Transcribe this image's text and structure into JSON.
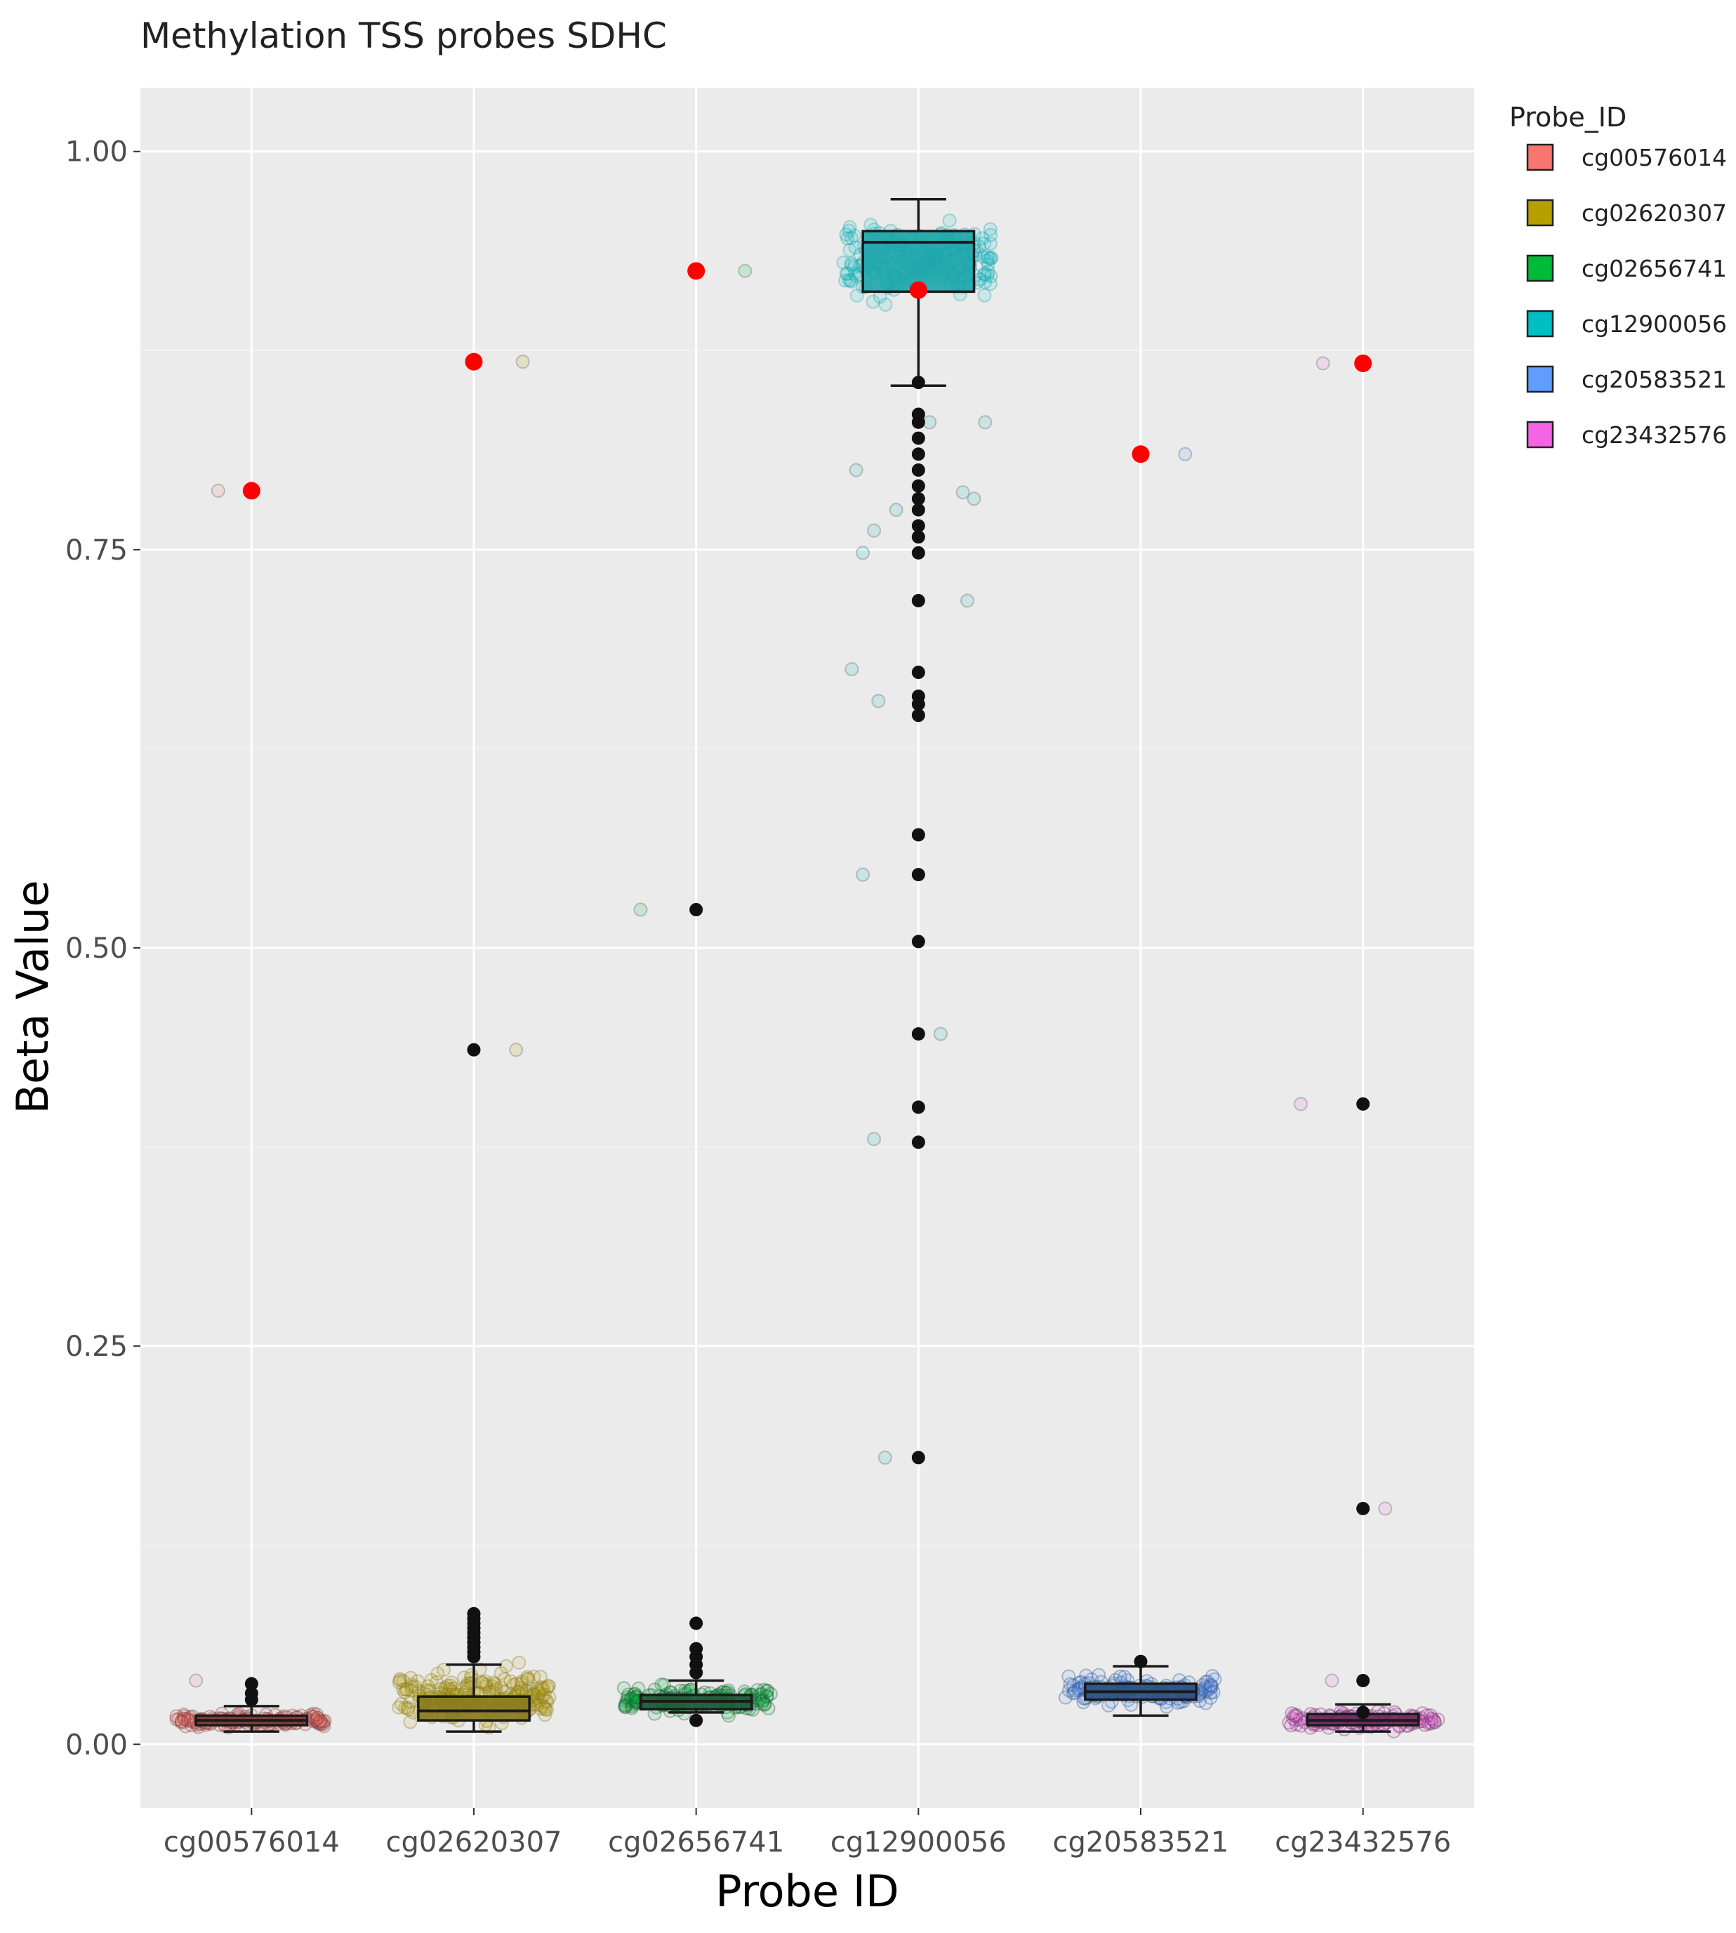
{
  "chart_data": {
    "type": "box",
    "title": "Methylation TSS probes SDHC",
    "xlabel": "Probe ID",
    "ylabel": "Beta Value",
    "ylim": [
      -0.04,
      1.04
    ],
    "yticks": [
      0.0,
      0.25,
      0.5,
      0.75,
      1.0
    ],
    "ytick_labels": [
      "0.00",
      "0.25",
      "0.50",
      "0.75",
      "1.00"
    ],
    "grid": true,
    "legend": {
      "title": "Probe_ID",
      "position": "right",
      "entries": [
        "cg00576014",
        "cg02620307",
        "cg02656741",
        "cg12900056",
        "cg20583521",
        "cg23432576"
      ]
    },
    "highlight_color": "#ff0000",
    "series": [
      {
        "name": "cg00576014",
        "color": "#f8766d",
        "box_color": "#7a3a3a",
        "box": {
          "whisker_low": 0.008,
          "q1": 0.012,
          "median": 0.015,
          "q3": 0.018,
          "whisker_high": 0.024
        },
        "outliers": [
          0.028,
          0.032,
          0.038
        ],
        "highlight": 0.787,
        "jitter_spread": 0.008,
        "jitter_center": 0.015,
        "jitter_count": 140,
        "faint_points": [
          [
            -0.15,
            0.787
          ],
          [
            -0.25,
            0.04
          ]
        ]
      },
      {
        "name": "cg02620307",
        "color": "#b79f00",
        "box_color": "#8a7a1e",
        "box": {
          "whisker_low": 0.008,
          "q1": 0.015,
          "median": 0.021,
          "q3": 0.03,
          "whisker_high": 0.05
        },
        "outliers": [
          0.055,
          0.058,
          0.061,
          0.064,
          0.067,
          0.07,
          0.073,
          0.076,
          0.079,
          0.082,
          0.436
        ],
        "highlight": 0.868,
        "jitter_spread": 0.03,
        "jitter_center": 0.03,
        "jitter_count": 220,
        "faint_points": [
          [
            0.22,
            0.868
          ],
          [
            0.19,
            0.436
          ]
        ]
      },
      {
        "name": "cg02656741",
        "color": "#00ba38",
        "box_color": "#1f5a3a",
        "box": {
          "whisker_low": 0.02,
          "q1": 0.022,
          "median": 0.027,
          "q3": 0.031,
          "whisker_high": 0.04
        },
        "outliers": [
          0.015,
          0.045,
          0.05,
          0.055,
          0.06,
          0.076,
          0.524
        ],
        "highlight": 0.925,
        "jitter_spread": 0.015,
        "jitter_center": 0.028,
        "jitter_count": 170,
        "faint_points": [
          [
            0.22,
            0.925
          ],
          [
            -0.25,
            0.524
          ]
        ]
      },
      {
        "name": "cg12900056",
        "color": "#00bfc4",
        "box_color": "#1ea6ab",
        "box": {
          "whisker_low": 0.853,
          "q1": 0.912,
          "median": 0.943,
          "q3": 0.95,
          "whisker_high": 0.97
        },
        "outliers": [
          0.18,
          0.378,
          0.4,
          0.446,
          0.504,
          0.546,
          0.571,
          0.646,
          0.653,
          0.658,
          0.673,
          0.718,
          0.748,
          0.758,
          0.765,
          0.775,
          0.782,
          0.79,
          0.8,
          0.81,
          0.82,
          0.83,
          0.835,
          0.855
        ],
        "highlight": 0.913,
        "jitter_spread": 0.04,
        "jitter_center": 0.93,
        "jitter_count": 220,
        "faint_points": [
          [
            -0.3,
            0.675
          ],
          [
            -0.18,
            0.655
          ],
          [
            -0.25,
            0.546
          ],
          [
            -0.2,
            0.38
          ],
          [
            -0.15,
            0.18
          ],
          [
            0.1,
            0.446
          ],
          [
            0.22,
            0.718
          ],
          [
            0.2,
            0.786
          ],
          [
            0.25,
            0.782
          ],
          [
            -0.28,
            0.8
          ],
          [
            -0.2,
            0.762
          ],
          [
            -0.25,
            0.748
          ],
          [
            -0.1,
            0.775
          ],
          [
            0.05,
            0.83
          ],
          [
            0.3,
            0.83
          ]
        ]
      },
      {
        "name": "cg20583521",
        "color": "#619cff",
        "box_color": "#2c4f86",
        "box": {
          "whisker_low": 0.018,
          "q1": 0.028,
          "median": 0.033,
          "q3": 0.038,
          "whisker_high": 0.049
        },
        "outliers": [
          0.052
        ],
        "highlight": 0.81,
        "jitter_spread": 0.015,
        "jitter_center": 0.034,
        "jitter_count": 160,
        "faint_points": [
          [
            0.2,
            0.81
          ]
        ]
      },
      {
        "name": "cg23432576",
        "color": "#f564e3",
        "box_color": "#6a2a5e",
        "box": {
          "whisker_low": 0.008,
          "q1": 0.012,
          "median": 0.015,
          "q3": 0.019,
          "whisker_high": 0.025
        },
        "outliers": [
          0.02,
          0.04,
          0.148,
          0.402
        ],
        "highlight": 0.867,
        "jitter_spread": 0.009,
        "jitter_center": 0.015,
        "jitter_count": 140,
        "faint_points": [
          [
            -0.18,
            0.867
          ],
          [
            -0.28,
            0.402
          ],
          [
            0.1,
            0.148
          ],
          [
            -0.14,
            0.04
          ]
        ]
      }
    ]
  }
}
